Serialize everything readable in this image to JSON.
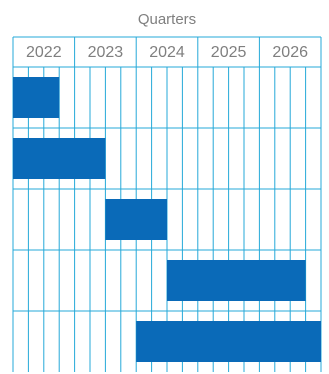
{
  "chart_data": {
    "type": "bar",
    "title": "Quarters",
    "categories": [
      "2022",
      "2023",
      "2024",
      "2025",
      "2026"
    ],
    "subdivisions_per_year": 4,
    "series": [
      {
        "start_quarter": 0,
        "end_quarter": 3
      },
      {
        "start_quarter": 0,
        "end_quarter": 6
      },
      {
        "start_quarter": 6,
        "end_quarter": 10
      },
      {
        "start_quarter": 10,
        "end_quarter": 19
      },
      {
        "start_quarter": 8,
        "end_quarter": 20
      }
    ],
    "grid": true,
    "colors": {
      "grid": "#25a9d8",
      "bar": "#0a6ab8",
      "text": "#7f7f7f"
    }
  }
}
